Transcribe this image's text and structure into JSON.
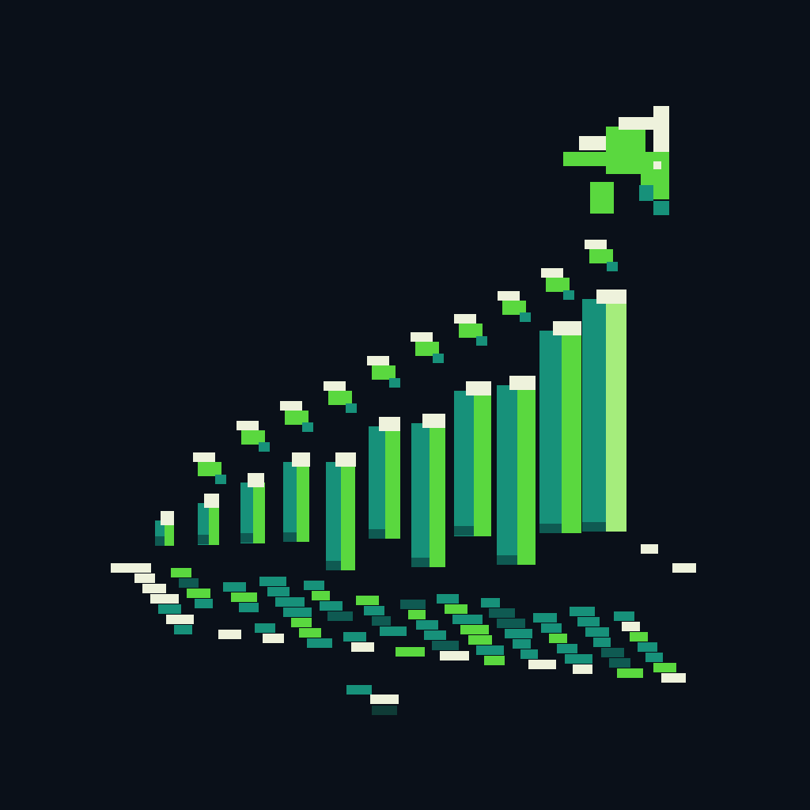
{
  "chart_data": {
    "type": "bar",
    "title": "",
    "xlabel": "",
    "ylabel": "",
    "style": "pixel-art isometric",
    "grid": false,
    "legend": "none",
    "ylim": [
      0,
      100
    ],
    "categories": [
      "",
      "",
      "",
      "",
      "",
      "",
      "",
      "",
      "",
      "",
      ""
    ],
    "series": [
      {
        "values": [
          4,
          10,
          17,
          24,
          32,
          36,
          44,
          48,
          56,
          69,
          80
        ]
      }
    ],
    "trend_arrow": {
      "direction": "up-right",
      "values": [
        10,
        20,
        26,
        32,
        40,
        48,
        54,
        62,
        70,
        80,
        100
      ]
    },
    "colors": {
      "background": "#0a1019",
      "bar_front": "#5ad83f",
      "bar_side": "#17917a",
      "bar_cap": "#eef2dc",
      "last_bar_front": "#a5ed7c",
      "arrow": "#5ad83f",
      "arrow_highlight": "#eef2dc",
      "arrow_shadow": "#17917a",
      "floor_light": "#eef2dc",
      "floor_teal": "#17917a",
      "floor_green": "#5ad83f"
    }
  }
}
